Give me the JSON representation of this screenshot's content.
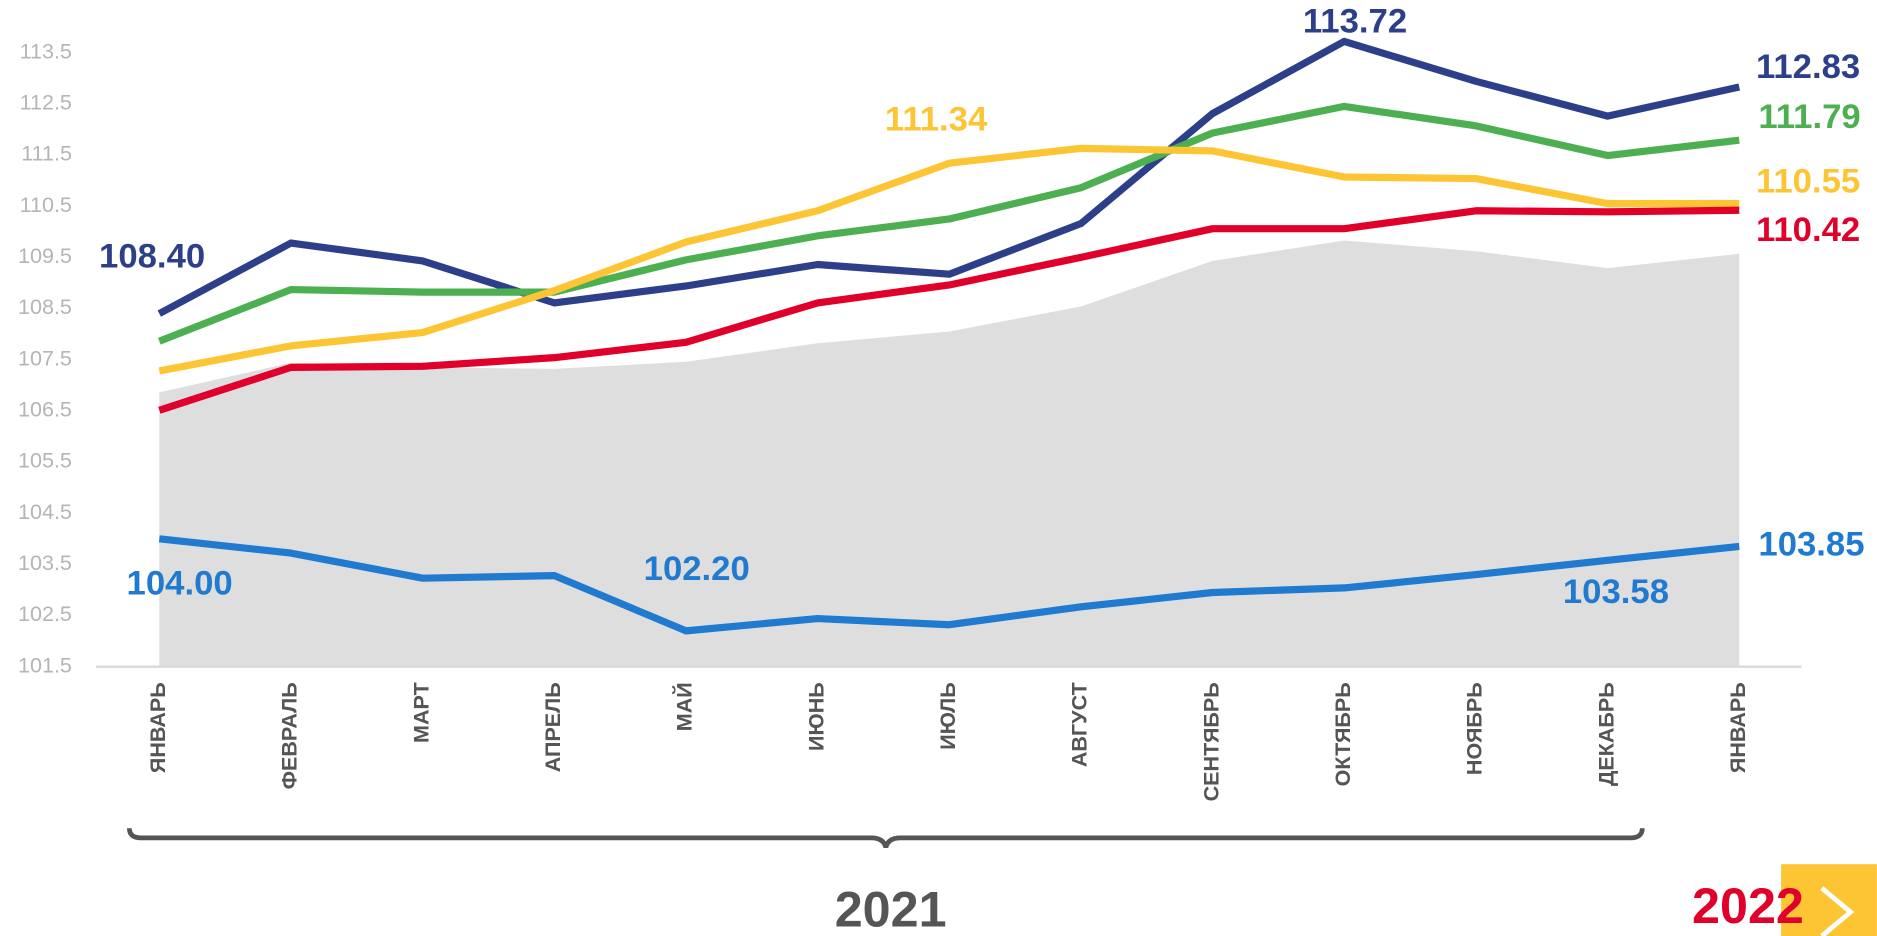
{
  "chart_data": {
    "type": "line",
    "categories": [
      "ЯНВАРЬ",
      "ФЕВРАЛЬ",
      "МАРТ",
      "АПРЕЛЬ",
      "МАЙ",
      "ИЮНЬ",
      "ИЮЛЬ",
      "АВГУСТ",
      "СЕНТЯБРЬ",
      "ОКТЯБРЬ",
      "НОЯБРЬ",
      "ДЕКАБРЬ",
      "ЯНВАРЬ"
    ],
    "ylim": [
      101.5,
      114.5
    ],
    "yticks": [
      {
        "value": 101.5,
        "label": "101.5"
      },
      {
        "value": 102.5,
        "label": "102.5"
      },
      {
        "value": 103.5,
        "label": "103.5"
      },
      {
        "value": 104.5,
        "label": "104.5"
      },
      {
        "value": 105.5,
        "label": "105.5"
      },
      {
        "value": 106.5,
        "label": "106.5"
      },
      {
        "value": 107.5,
        "label": "107.5"
      },
      {
        "value": 108.5,
        "label": "108.5"
      },
      {
        "value": 109.5,
        "label": "109.5"
      },
      {
        "value": 110.5,
        "label": "110.5"
      },
      {
        "value": 111.5,
        "label": "111.5"
      },
      {
        "value": 112.5,
        "label": "112.5"
      },
      {
        "value": 113.5,
        "label": "113.5"
      }
    ],
    "area": {
      "color": "#dedede",
      "values": [
        106.86,
        107.44,
        107.35,
        107.32,
        107.46,
        107.82,
        108.05,
        108.54,
        109.43,
        109.83,
        109.62,
        109.29,
        109.57
      ]
    },
    "series": [
      {
        "color": "#2e3f8a",
        "values": [
          108.4,
          109.78,
          109.43,
          108.61,
          108.94,
          109.36,
          109.17,
          110.16,
          112.31,
          113.72,
          112.94,
          112.26,
          112.83
        ],
        "value_labels": [
          "108.40",
          null,
          null,
          null,
          null,
          null,
          null,
          null,
          null,
          "113.72",
          null,
          null,
          "112.83"
        ]
      },
      {
        "color": "#4caf50",
        "values": [
          107.86,
          108.87,
          108.82,
          108.82,
          109.45,
          109.92,
          110.25,
          110.86,
          111.93,
          112.45,
          112.07,
          111.49,
          111.79
        ],
        "value_labels": [
          null,
          null,
          null,
          null,
          null,
          null,
          null,
          null,
          null,
          null,
          null,
          null,
          "111.79"
        ]
      },
      {
        "color": "#fdc534",
        "values": [
          107.28,
          107.77,
          108.03,
          108.85,
          109.8,
          110.41,
          111.34,
          111.63,
          111.58,
          111.07,
          111.04,
          110.55,
          110.55
        ],
        "value_labels": [
          null,
          null,
          null,
          null,
          null,
          null,
          "111.34",
          null,
          null,
          null,
          null,
          null,
          "110.55"
        ]
      },
      {
        "color": "#e0002a",
        "values": [
          106.51,
          107.35,
          107.37,
          107.54,
          107.84,
          108.61,
          108.96,
          109.5,
          110.06,
          110.06,
          110.41,
          110.39,
          110.42
        ],
        "value_labels": [
          null,
          null,
          null,
          null,
          null,
          null,
          null,
          null,
          null,
          null,
          null,
          null,
          "110.42"
        ]
      },
      {
        "color": "#1f7ad0",
        "values": [
          104.0,
          103.72,
          103.23,
          103.28,
          102.2,
          102.44,
          102.32,
          102.67,
          102.95,
          103.04,
          103.3,
          103.58,
          103.85
        ],
        "value_labels": [
          "104.00",
          null,
          null,
          null,
          "102.20",
          null,
          null,
          null,
          null,
          null,
          null,
          "103.58",
          "103.85"
        ]
      }
    ],
    "year_labels": [
      "2021",
      "2022"
    ]
  }
}
